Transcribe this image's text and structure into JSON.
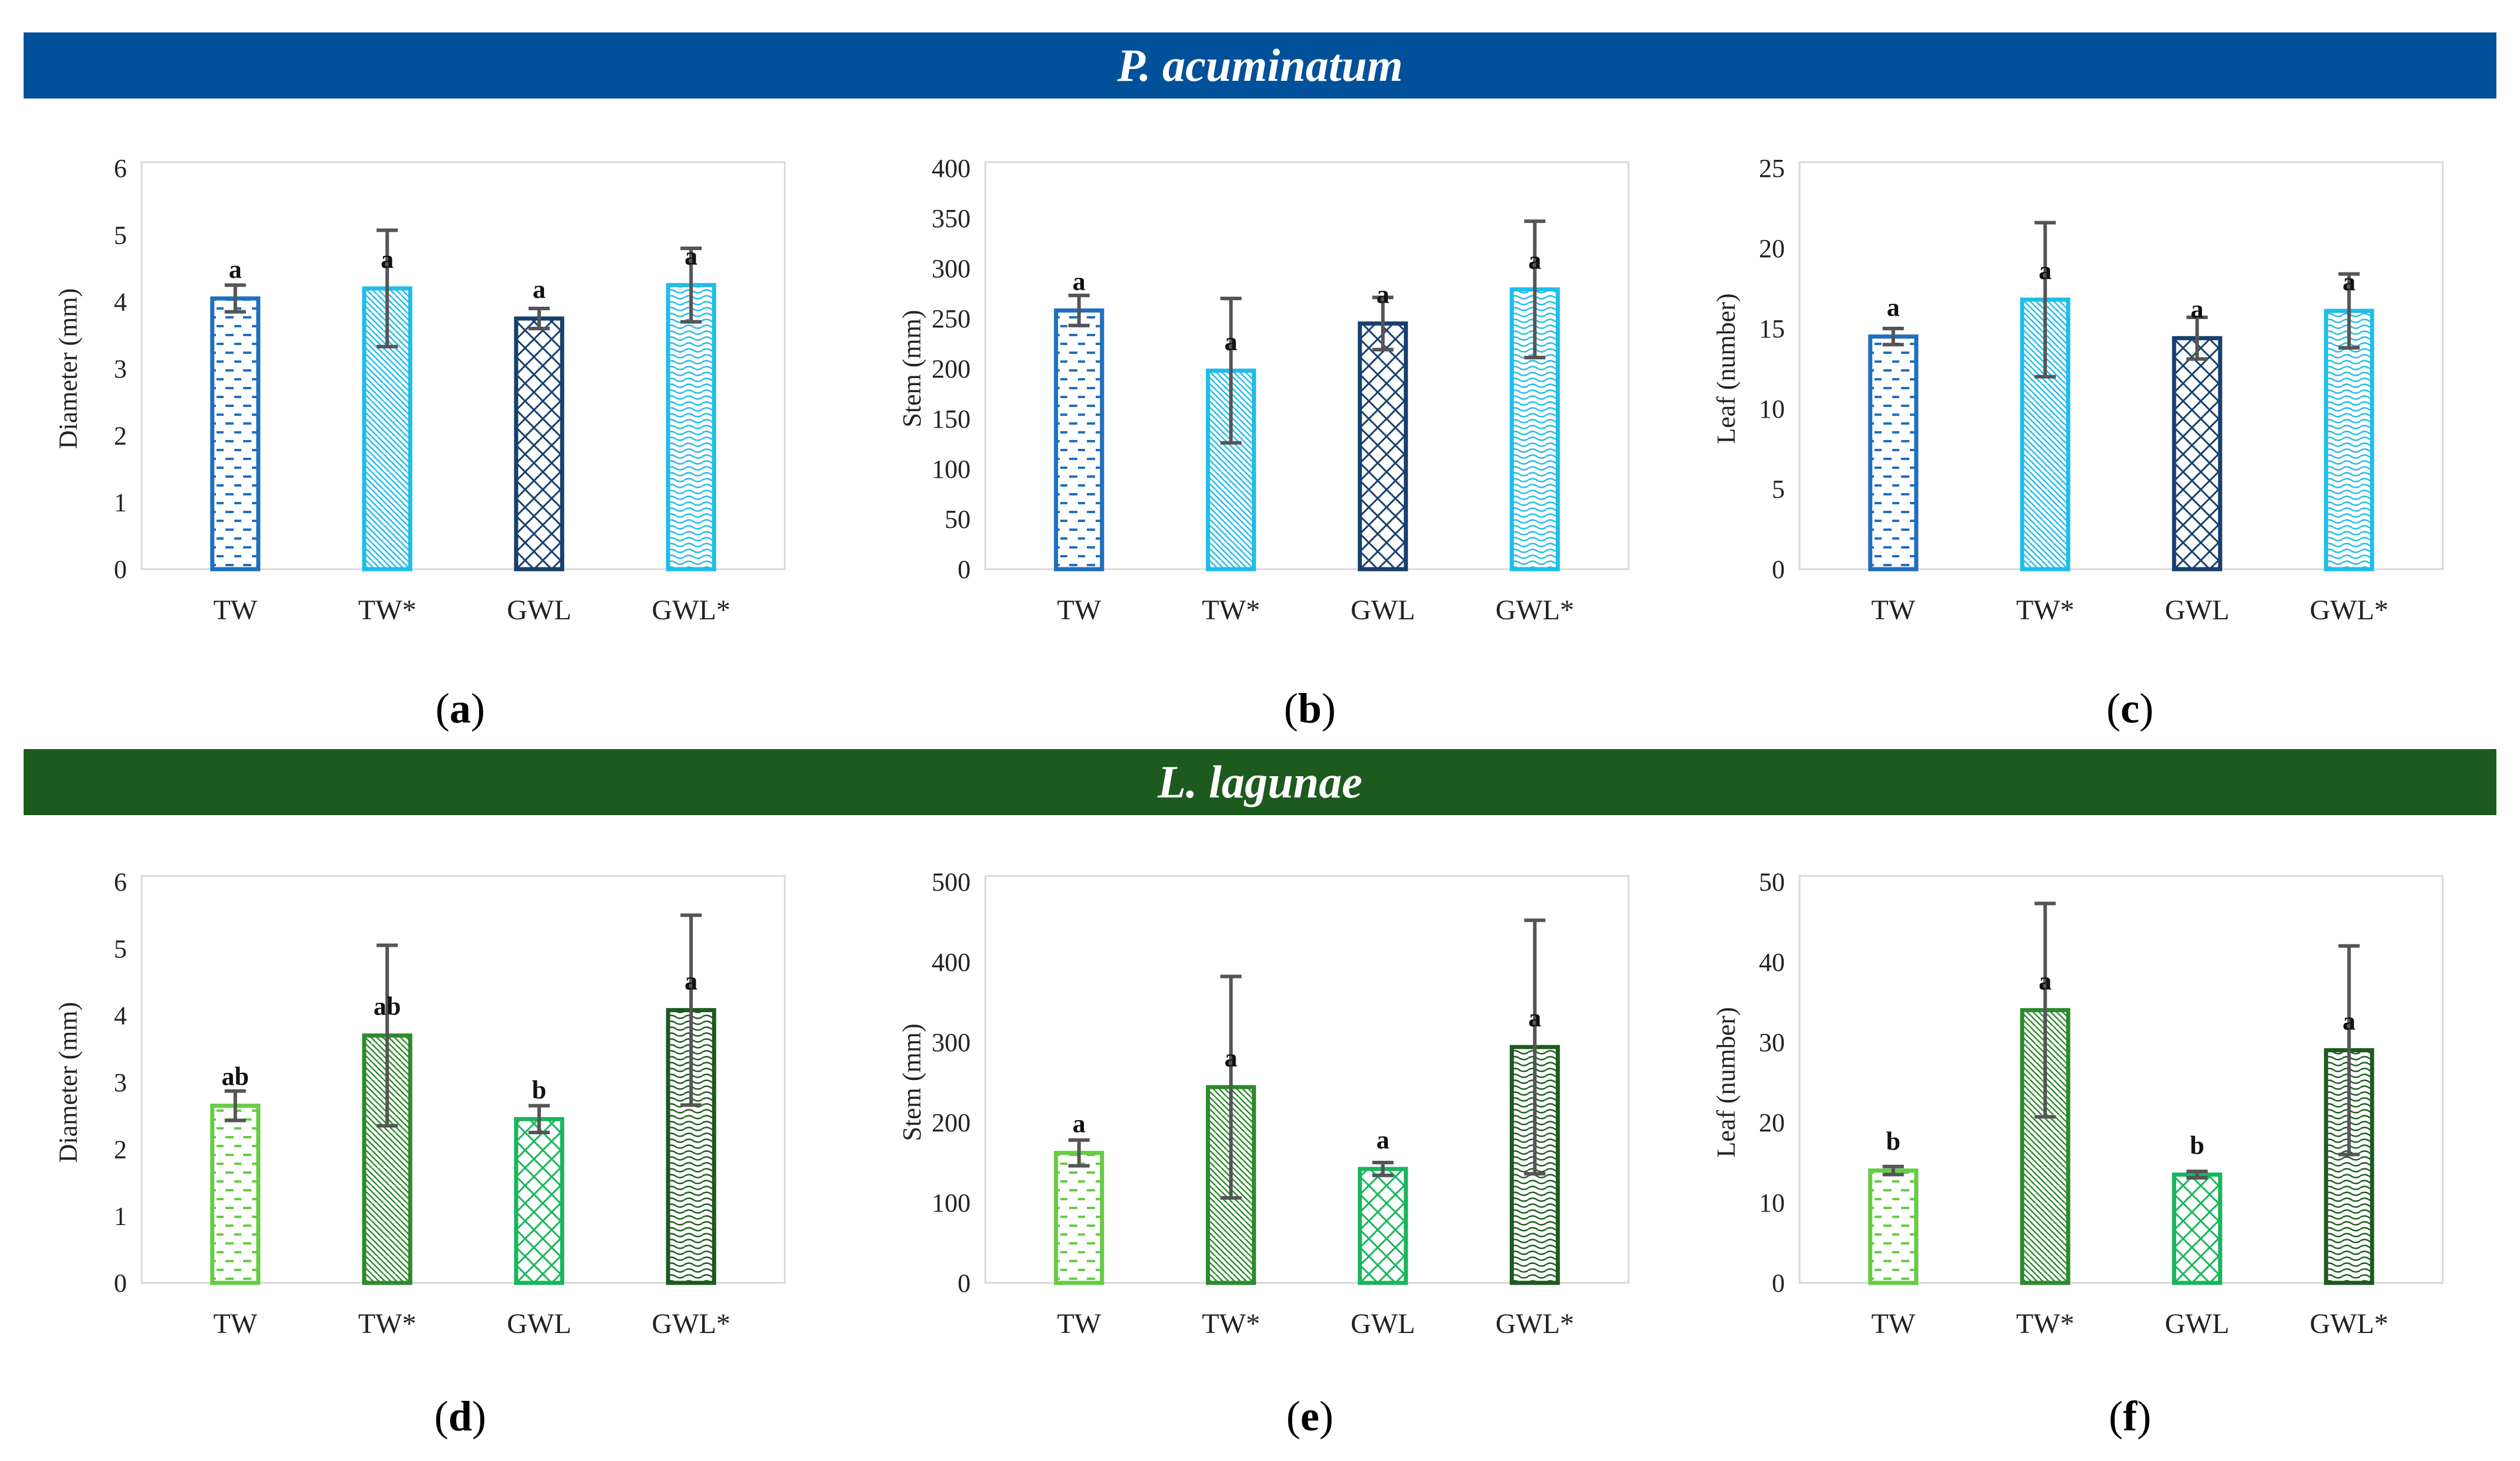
{
  "banners": [
    {
      "text": "P. acuminatum",
      "color": "#00519a"
    },
    {
      "text": "L. lagunae",
      "color": "#1d5a1e"
    }
  ],
  "chart_data": [
    {
      "id": "a",
      "type": "bar",
      "categories": [
        "TW",
        "TW*",
        "GWL",
        "GWL*"
      ],
      "ylabel": "Diameter (mm)",
      "ylim": [
        0,
        6
      ],
      "yticks": [
        0,
        1,
        2,
        3,
        4,
        5,
        6
      ],
      "values": [
        4.05,
        4.2,
        3.75,
        4.25
      ],
      "errors": [
        0.2,
        0.87,
        0.15,
        0.55
      ],
      "letters": [
        "a",
        "a",
        "a",
        "a"
      ],
      "colors": [
        "#1f6fbf",
        "#1fbde8",
        "#17406e",
        "#1fbde8"
      ],
      "patterns": [
        "dash",
        "diag",
        "cross",
        "wave"
      ]
    },
    {
      "id": "b",
      "type": "bar",
      "categories": [
        "TW",
        "TW*",
        "GWL",
        "GWL*"
      ],
      "ylabel": "Stem (mm)",
      "ylim": [
        0,
        400
      ],
      "yticks": [
        0,
        50,
        100,
        150,
        200,
        250,
        300,
        350,
        400
      ],
      "values": [
        258,
        198,
        245,
        279
      ],
      "errors": [
        15,
        72,
        26,
        68
      ],
      "letters": [
        "a",
        "a",
        "a",
        "a"
      ],
      "colors": [
        "#1f6fbf",
        "#1fbde8",
        "#17406e",
        "#1fbde8"
      ],
      "patterns": [
        "dash",
        "diag",
        "cross",
        "wave"
      ]
    },
    {
      "id": "c",
      "type": "bar",
      "categories": [
        "TW",
        "TW*",
        "GWL",
        "GWL*"
      ],
      "ylabel": "Leaf (number)",
      "ylim": [
        0,
        25
      ],
      "yticks": [
        0,
        5,
        10,
        15,
        20,
        25
      ],
      "values": [
        14.5,
        16.8,
        14.4,
        16.1
      ],
      "errors": [
        0.5,
        4.8,
        1.3,
        2.3
      ],
      "letters": [
        "a",
        "a",
        "a",
        "a"
      ],
      "colors": [
        "#1f6fbf",
        "#1fbde8",
        "#17406e",
        "#1fbde8"
      ],
      "patterns": [
        "dash",
        "diag",
        "cross",
        "wave"
      ]
    },
    {
      "id": "d",
      "type": "bar",
      "categories": [
        "TW",
        "TW*",
        "GWL",
        "GWL*"
      ],
      "ylabel": "Diameter (mm)",
      "ylim": [
        0,
        6
      ],
      "yticks": [
        0,
        1,
        2,
        3,
        4,
        5,
        6
      ],
      "values": [
        2.65,
        3.7,
        2.45,
        4.08
      ],
      "errors": [
        0.22,
        1.35,
        0.2,
        1.42
      ],
      "letters": [
        "ab",
        "ab",
        "b",
        "a"
      ],
      "colors": [
        "#66cc44",
        "#2d8a2d",
        "#1ab55c",
        "#1d5a1e"
      ],
      "patterns": [
        "dash",
        "diag",
        "cross",
        "wave"
      ]
    },
    {
      "id": "e",
      "type": "bar",
      "categories": [
        "TW",
        "TW*",
        "GWL",
        "GWL*"
      ],
      "ylabel": "Stem (mm)",
      "ylim": [
        0,
        500
      ],
      "yticks": [
        0,
        100,
        200,
        300,
        400,
        500
      ],
      "values": [
        162,
        244,
        142,
        294
      ],
      "errors": [
        16,
        138,
        8,
        158
      ],
      "letters": [
        "a",
        "a",
        "a",
        "a"
      ],
      "colors": [
        "#66cc44",
        "#2d8a2d",
        "#1ab55c",
        "#1d5a1e"
      ],
      "patterns": [
        "dash",
        "diag",
        "cross",
        "wave"
      ]
    },
    {
      "id": "f",
      "type": "bar",
      "categories": [
        "TW",
        "TW*",
        "GWL",
        "GWL*"
      ],
      "ylabel": "Leaf (number)",
      "ylim": [
        0,
        50
      ],
      "yticks": [
        0,
        10,
        20,
        30,
        40,
        50
      ],
      "values": [
        14,
        34,
        13.5,
        29
      ],
      "errors": [
        0.5,
        13.3,
        0.4,
        13
      ],
      "letters": [
        "b",
        "a",
        "b",
        "a"
      ],
      "colors": [
        "#66cc44",
        "#2d8a2d",
        "#1ab55c",
        "#1d5a1e"
      ],
      "patterns": [
        "dash",
        "diag",
        "cross",
        "wave"
      ]
    }
  ],
  "panel_labels": [
    "a",
    "b",
    "c",
    "d",
    "e",
    "f"
  ]
}
